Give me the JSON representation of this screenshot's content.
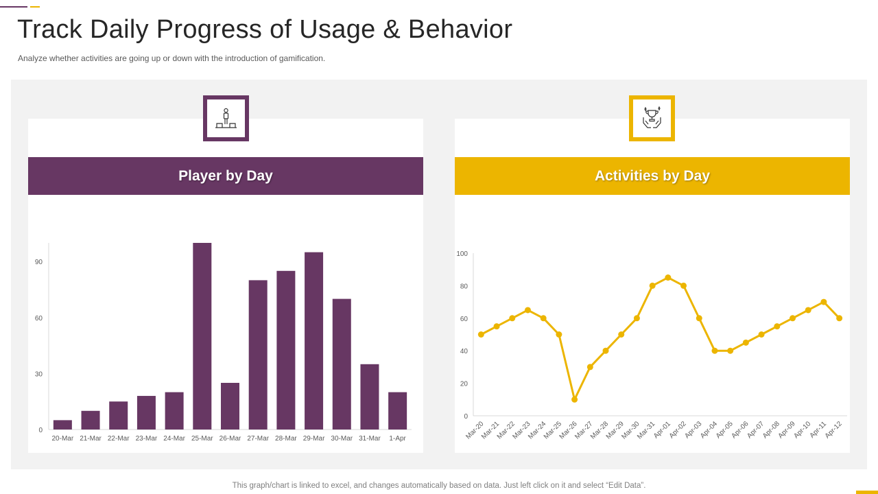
{
  "header": {
    "title": "Track Daily Progress of Usage & Behavior",
    "subtitle": "Analyze whether activities are going up or down with the introduction of gamification."
  },
  "colors": {
    "purple": "#673763",
    "gold": "#ecb500",
    "panel": "#f2f2f2"
  },
  "left_card": {
    "heading": "Player by Day",
    "icon": "podium-person-icon"
  },
  "right_card": {
    "heading": "Activities by Day",
    "icon": "trophy-hands-icon"
  },
  "footnote": "This graph/chart is linked to excel,  and changes automatically based on data. Just left click on it and select “Edit Data”.",
  "chart_data": [
    {
      "type": "bar",
      "title": "Player by Day",
      "categories": [
        "20-Mar",
        "21-Mar",
        "22-Mar",
        "23-Mar",
        "24-Mar",
        "25-Mar",
        "26-Mar",
        "27-Mar",
        "28-Mar",
        "29-Mar",
        "30-Mar",
        "31-Mar",
        "1-Apr"
      ],
      "values": [
        5,
        10,
        15,
        18,
        20,
        100,
        25,
        80,
        85,
        95,
        70,
        35,
        20
      ],
      "yticks": [
        0,
        30,
        60,
        90
      ],
      "ylim": [
        0,
        100
      ],
      "xlabel": "",
      "ylabel": ""
    },
    {
      "type": "line",
      "title": "Activities by Day",
      "categories": [
        "Mar-20",
        "Mar-21",
        "Mar-22",
        "Mar-23",
        "Mar-24",
        "Mar-25",
        "Mar-26",
        "Mar-27",
        "Mar-28",
        "Mar-29",
        "Mar-30",
        "Mar-31",
        "Apr-01",
        "Apr-02",
        "Apr-03",
        "Apr-04",
        "Apr-05",
        "Apr-06",
        "Apr-07",
        "Apr-08",
        "Apr-09",
        "Apr-10",
        "Apr-11",
        "Apr-12"
      ],
      "values": [
        50,
        55,
        60,
        65,
        60,
        50,
        10,
        30,
        40,
        50,
        60,
        80,
        85,
        80,
        60,
        40,
        40,
        45,
        50,
        55,
        60,
        65,
        70,
        60
      ],
      "yticks": [
        0,
        20,
        40,
        60,
        80,
        100
      ],
      "ylim": [
        0,
        100
      ],
      "xlabel": "",
      "ylabel": ""
    }
  ]
}
